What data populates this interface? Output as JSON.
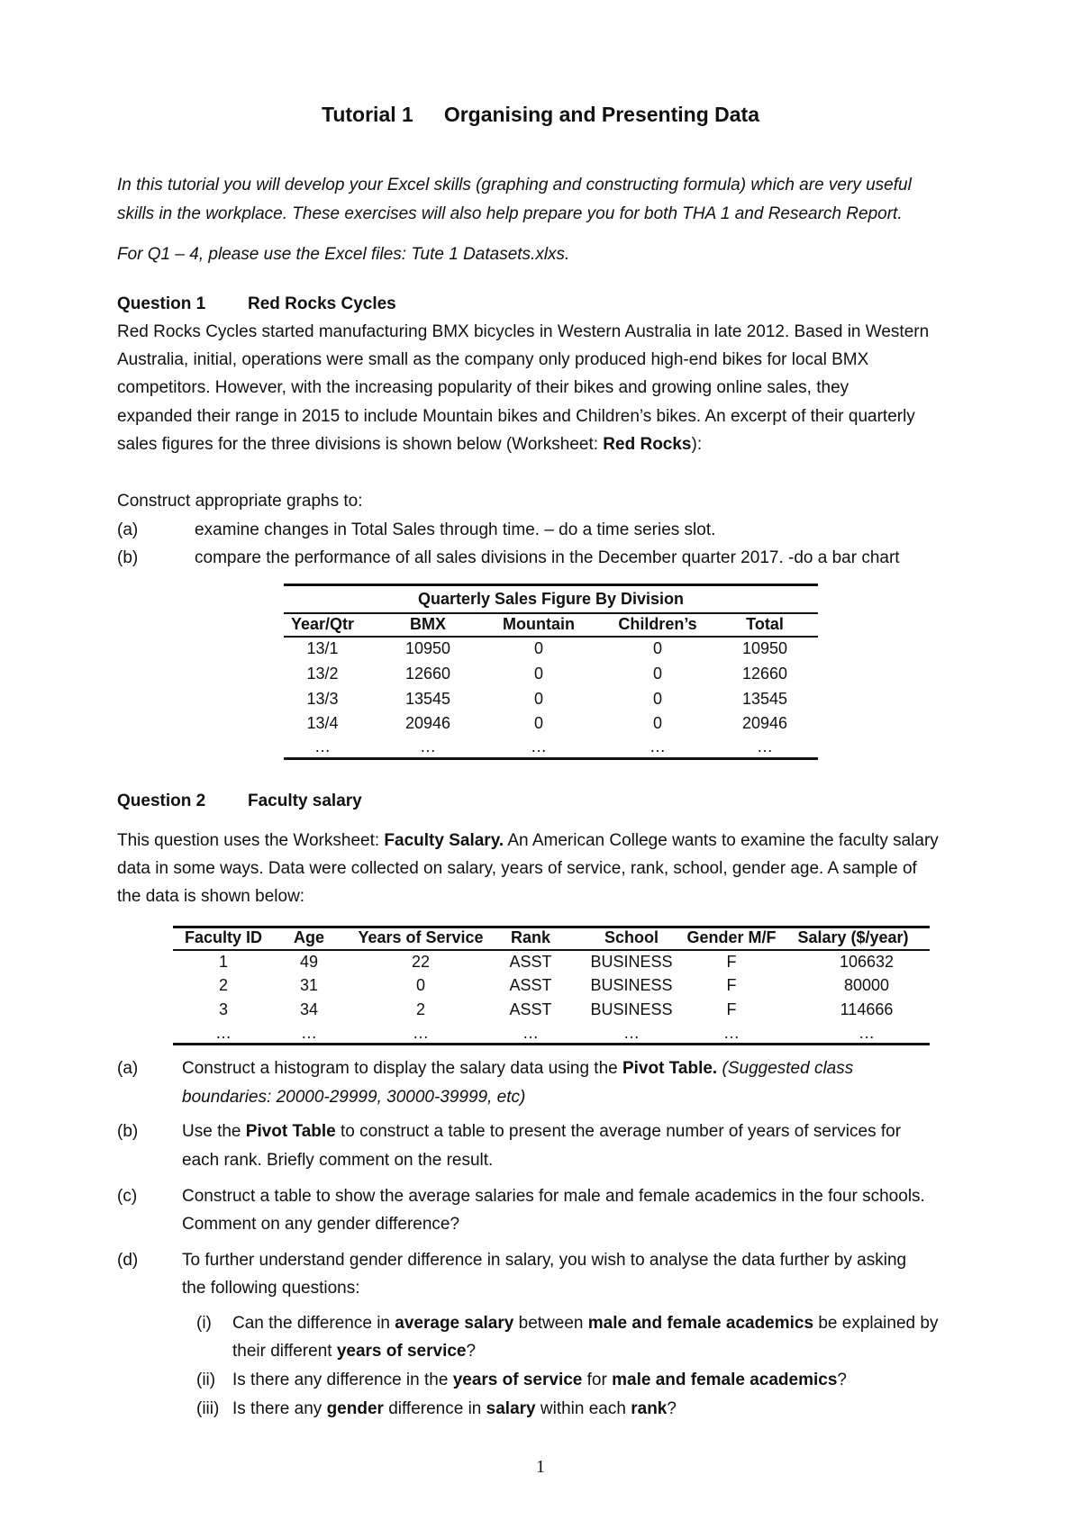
{
  "title": {
    "number": "Tutorial 1",
    "text": "Organising and Presenting Data"
  },
  "intro": [
    [
      {
        "t": "In this tutorial you will develop your Excel skills (graphing and constructing formula) which are very useful",
        "s": "i"
      }
    ],
    [
      {
        "t": "skills in the workplace. These exercises will also help prepare you for both THA 1 and Research Report.",
        "s": "i"
      }
    ],
    [
      {
        "t": "For Q1 – 4, please use the Excel files: Tute 1 Datasets.xlxs.",
        "s": "i"
      }
    ]
  ],
  "q1": {
    "label": "Question 1",
    "heading": "Red Rocks Cycles",
    "body": [
      [
        {
          "t": "Red Rocks Cycles started manufacturing BMX bicycles in Western Australia in late 2012. Based in Western"
        }
      ],
      [
        {
          "t": "Australia, initial, operations were small as the company only produced high-end bikes for local BMX"
        }
      ],
      [
        {
          "t": "competitors. However, with the increasing popularity of their bikes and growing online sales, they"
        }
      ],
      [
        {
          "t": "expanded their range in 2015 to include Mountain bikes and Children’s bikes. An excerpt of their quarterly"
        }
      ],
      [
        {
          "t": "sales figures for the three divisions is shown below (Worksheet: "
        },
        {
          "t": "Red Rocks",
          "s": "b"
        },
        {
          "t": "):"
        }
      ]
    ],
    "instruction": "Construct appropriate graphs to:",
    "parts": [
      {
        "label": "(a)",
        "text": "examine changes in Total Sales through time. – do a time series slot."
      },
      {
        "label": "(b)",
        "text": "compare the performance of all sales divisions in the December quarter 2017. -do a bar chart"
      }
    ],
    "table": {
      "caption": "Quarterly Sales Figure By Division",
      "columns": [
        "Year/Qtr",
        "BMX",
        "Mountain",
        "Children’s",
        "Total"
      ],
      "rows": [
        [
          "13/1",
          "10950",
          "0",
          "0",
          "10950"
        ],
        [
          "13/2",
          "12660",
          "0",
          "0",
          "12660"
        ],
        [
          "13/3",
          "13545",
          "0",
          "0",
          "13545"
        ],
        [
          "13/4",
          "20946",
          "0",
          "0",
          "20946"
        ],
        [
          "…",
          "…",
          "…",
          "…",
          "…"
        ]
      ]
    }
  },
  "q2": {
    "label": "Question 2",
    "heading": "Faculty salary",
    "body": [
      [
        {
          "t": "This question uses the Worksheet: "
        },
        {
          "t": "Faculty Salary.",
          "s": "b"
        },
        {
          "t": " An American College wants to examine the faculty salary"
        }
      ],
      [
        {
          "t": "data in some ways. Data were collected on salary, years of service, rank, school, gender age. A sample of"
        }
      ],
      [
        {
          "t": "the data is shown below:"
        }
      ]
    ],
    "table": {
      "columns": [
        "Faculty ID",
        "Age",
        "Years of Service",
        "Rank",
        "School",
        "Gender M/F",
        "Salary ($/year)"
      ],
      "rows": [
        [
          "1",
          "49",
          "22",
          "ASST",
          "BUSINESS",
          "F",
          "106632"
        ],
        [
          "2",
          "31",
          "0",
          "ASST",
          "BUSINESS",
          "F",
          "80000"
        ],
        [
          "3",
          "34",
          "2",
          "ASST",
          "BUSINESS",
          "F",
          "114666"
        ],
        [
          "…",
          "…",
          "…",
          "…",
          "…",
          "…",
          "…"
        ]
      ]
    },
    "parts": [
      {
        "label": "(a)",
        "lines": [
          [
            {
              "t": "Construct a histogram to display the salary data using the "
            },
            {
              "t": "Pivot Table.",
              "s": "b"
            },
            {
              "t": " (Suggested class",
              "s": "i"
            }
          ],
          [
            {
              "t": "boundaries: 20000-29999, 30000-39999, etc)",
              "s": "i"
            }
          ]
        ]
      },
      {
        "label": "(b)",
        "lines": [
          [
            {
              "t": "Use the "
            },
            {
              "t": "Pivot Table",
              "s": "b"
            },
            {
              "t": " to construct a table to present the average number of years of services for"
            }
          ],
          [
            {
              "t": "each rank. Briefly comment on the result."
            }
          ]
        ]
      },
      {
        "label": "(c)",
        "lines": [
          [
            {
              "t": "Construct a table to show the average salaries for male and female academics in the four schools."
            }
          ],
          [
            {
              "t": "Comment on any gender difference?"
            }
          ]
        ]
      },
      {
        "label": "(d)",
        "lines": [
          [
            {
              "t": "To further understand gender difference in salary, you wish to analyse the data further by asking"
            }
          ],
          [
            {
              "t": "the following questions:"
            }
          ]
        ]
      }
    ],
    "subparts": [
      {
        "label": "(i)",
        "lines": [
          [
            {
              "t": "Can the difference in "
            },
            {
              "t": "average salary",
              "s": "b"
            },
            {
              "t": " between "
            },
            {
              "t": "male and female academics",
              "s": "b"
            },
            {
              "t": " be explained by"
            }
          ],
          [
            {
              "t": "their different "
            },
            {
              "t": "years of service",
              "s": "b"
            },
            {
              "t": "?"
            }
          ]
        ]
      },
      {
        "label": "(ii)",
        "lines": [
          [
            {
              "t": "Is there any difference in the "
            },
            {
              "t": "years of service",
              "s": "b"
            },
            {
              "t": " for "
            },
            {
              "t": "male and female academics",
              "s": "b"
            },
            {
              "t": "?"
            }
          ]
        ]
      },
      {
        "label": "(iii)",
        "lines": [
          [
            {
              "t": "Is there any "
            },
            {
              "t": "gender",
              "s": "b"
            },
            {
              "t": " difference in "
            },
            {
              "t": "salary",
              "s": "b"
            },
            {
              "t": " within each "
            },
            {
              "t": "rank",
              "s": "b"
            },
            {
              "t": "?"
            }
          ]
        ]
      }
    ]
  },
  "page_number": "1"
}
